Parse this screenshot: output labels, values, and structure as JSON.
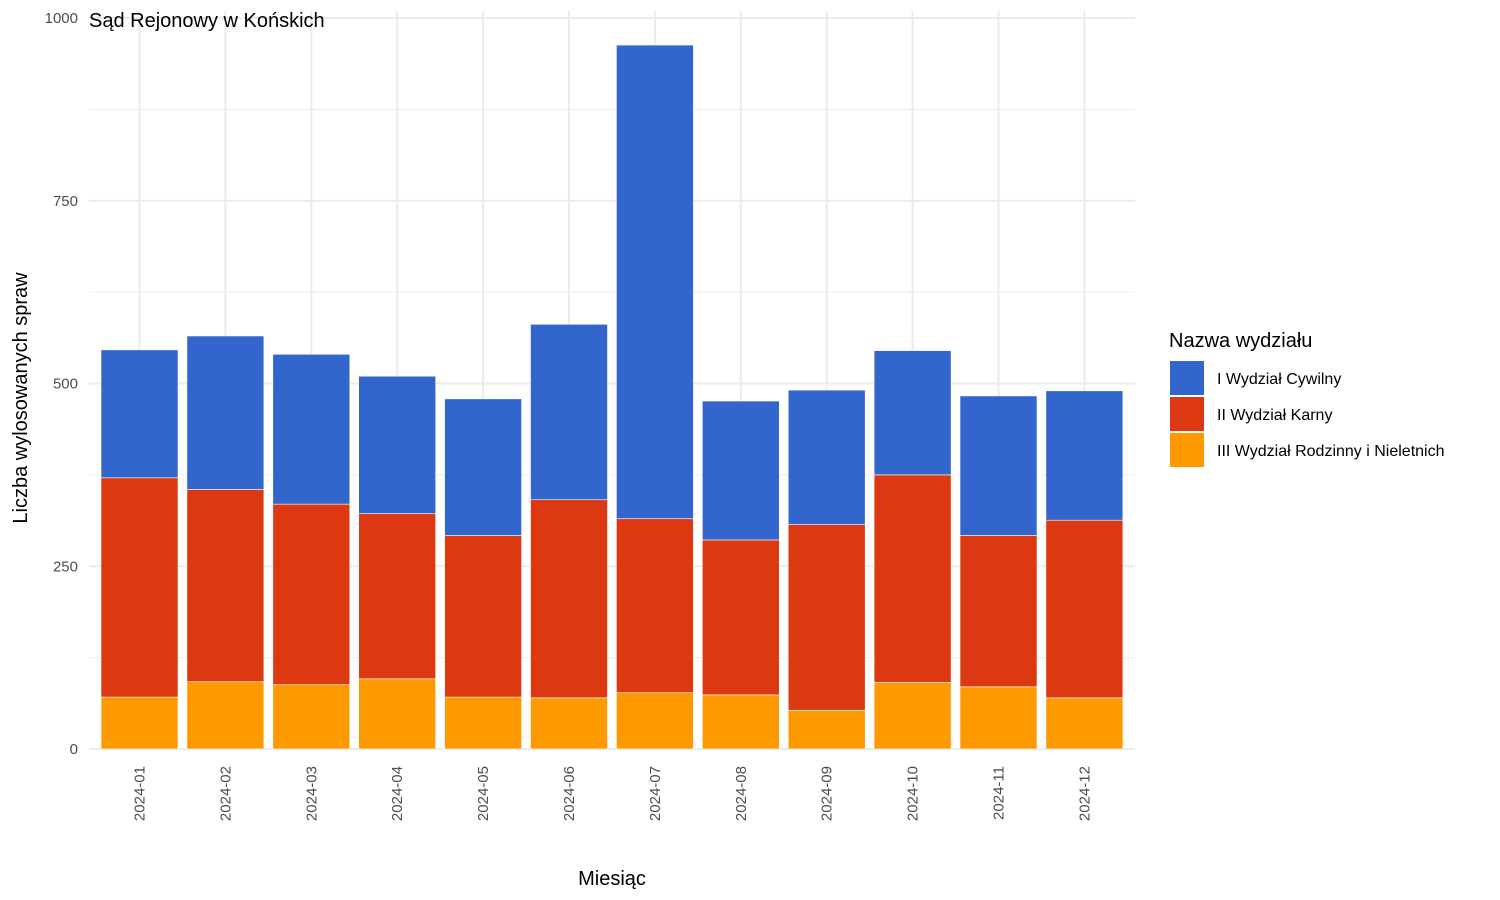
{
  "chart_data": {
    "type": "bar",
    "stacked": true,
    "title": "Sąd Rejonowy w Końskich",
    "xlabel": "Miesiąc",
    "ylabel": "Liczba wylosowanych spraw",
    "ylim": [
      0,
      1000
    ],
    "yticks": [
      "0",
      "250",
      "500",
      "750",
      "1000"
    ],
    "categories": [
      "2024-01",
      "2024-02",
      "2024-03",
      "2024-04",
      "2024-05",
      "2024-06",
      "2024-07",
      "2024-08",
      "2024-09",
      "2024-10",
      "2024-11",
      "2024-12"
    ],
    "legend_title": "Nazwa wydziału",
    "legend_position": "right",
    "grid": true,
    "series": [
      {
        "name": "III Wydział Rodzinny i Nieletnich",
        "color": "#FF9900",
        "values": [
          71,
          92,
          88,
          96,
          71,
          70,
          77,
          74,
          53,
          91,
          85,
          70
        ]
      },
      {
        "name": "II Wydział Karny",
        "color": "#DC3912",
        "values": [
          300,
          263,
          247,
          226,
          221,
          271,
          238,
          212,
          254,
          284,
          207,
          243
        ]
      },
      {
        "name": "I Wydział Cywilny",
        "color": "#3366CC",
        "values": [
          175,
          210,
          205,
          188,
          187,
          240,
          648,
          190,
          184,
          170,
          191,
          177
        ]
      }
    ],
    "legend_order": [
      "I Wydział Cywilny",
      "II Wydział Karny",
      "III Wydział Rodzinny i Nieletnich"
    ]
  }
}
